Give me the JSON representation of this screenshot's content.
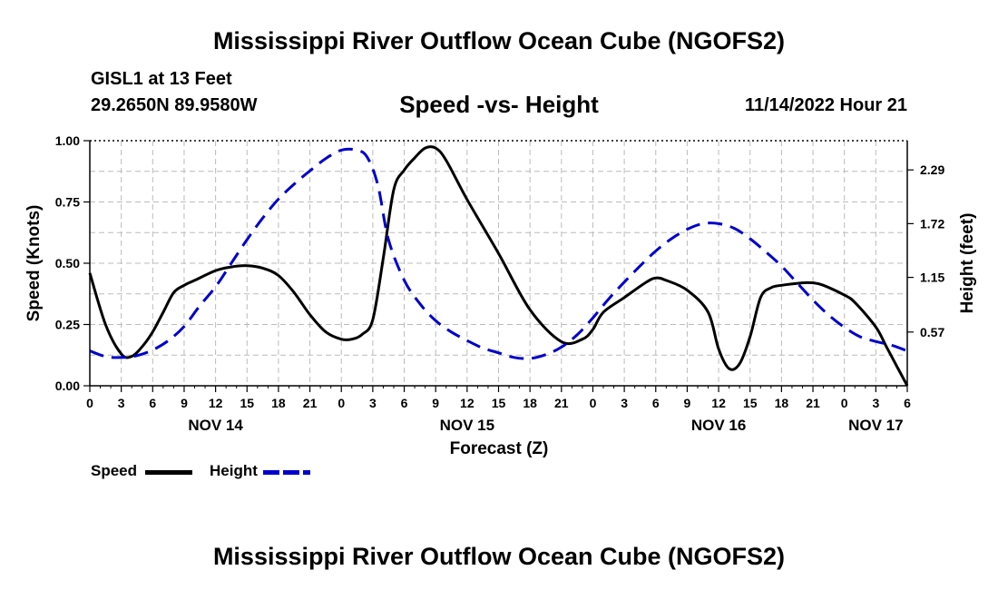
{
  "header": {
    "title": "Mississippi River Outflow Ocean Cube (NGOFS2)",
    "station": "GISL1 at 13 Feet",
    "coords": "29.2650N  89.9580W",
    "subtitle": "Speed -vs- Height",
    "timestamp": "11/14/2022 Hour 21"
  },
  "footer": {
    "title": "Mississippi River Outflow Ocean Cube (NGOFS2)"
  },
  "legend": {
    "speed_label": "Speed",
    "height_label": "Height"
  },
  "colors": {
    "speed": "#000000",
    "height": "#0000cc",
    "grid": "#bbbbbb"
  },
  "chart_data": {
    "type": "line",
    "xlabel": "Forecast (Z)",
    "ylabel": "Speed (Knots)",
    "y2label": "Height (feet)",
    "xlim": [
      0,
      78
    ],
    "ylim": [
      0,
      1.0
    ],
    "y2lim": [
      0.0,
      2.6
    ],
    "x_ticks": [
      0,
      3,
      6,
      9,
      12,
      15,
      18,
      21,
      24,
      27,
      30,
      33,
      36,
      39,
      42,
      45,
      48,
      51,
      54,
      57,
      60,
      63,
      66,
      69,
      72,
      75,
      78
    ],
    "x_tick_labels": [
      "0",
      "3",
      "6",
      "9",
      "12",
      "15",
      "18",
      "21",
      "0",
      "3",
      "6",
      "9",
      "12",
      "15",
      "18",
      "21",
      "0",
      "3",
      "6",
      "9",
      "12",
      "15",
      "18",
      "21",
      "0",
      "3",
      "6"
    ],
    "date_labels": [
      {
        "x": 12,
        "label": "NOV 14"
      },
      {
        "x": 36,
        "label": "NOV 15"
      },
      {
        "x": 60,
        "label": "NOV 16"
      },
      {
        "x": 75,
        "label": "NOV 17"
      }
    ],
    "y_ticks": [
      0,
      0.25,
      0.5,
      0.75,
      1.0
    ],
    "y_tick_labels": [
      "0.00",
      "0.25",
      "0.50",
      "0.75",
      "1.00"
    ],
    "y2_ticks": [
      0.57,
      1.15,
      1.72,
      2.29
    ],
    "y2_tick_labels": [
      "0.57",
      "1.15",
      "1.72",
      "2.29"
    ],
    "series": [
      {
        "name": "Speed",
        "axis": "left",
        "style": "solid",
        "x": [
          0,
          1.5,
          3,
          4,
          5,
          6,
          7,
          8,
          9,
          10,
          12,
          13.5,
          15,
          16.5,
          18,
          19.5,
          21,
          22.5,
          24,
          25,
          26,
          27,
          28,
          29,
          30,
          31,
          32,
          33,
          34,
          36,
          39,
          42,
          45,
          47,
          48,
          49,
          51,
          53,
          54,
          55,
          57,
          59,
          60,
          61,
          62,
          63,
          64,
          65,
          66,
          68,
          69,
          70,
          72,
          73,
          75,
          76,
          77,
          78
        ],
        "y": [
          0.46,
          0.25,
          0.13,
          0.12,
          0.16,
          0.22,
          0.3,
          0.38,
          0.41,
          0.43,
          0.47,
          0.485,
          0.49,
          0.48,
          0.45,
          0.38,
          0.29,
          0.22,
          0.19,
          0.19,
          0.21,
          0.27,
          0.52,
          0.8,
          0.88,
          0.93,
          0.97,
          0.97,
          0.92,
          0.76,
          0.54,
          0.31,
          0.18,
          0.19,
          0.23,
          0.3,
          0.36,
          0.42,
          0.44,
          0.43,
          0.39,
          0.3,
          0.15,
          0.07,
          0.09,
          0.2,
          0.36,
          0.4,
          0.41,
          0.42,
          0.42,
          0.41,
          0.37,
          0.34,
          0.24,
          0.16,
          0.08,
          0.0
        ],
        "values_note": "solid black line"
      },
      {
        "name": "Height",
        "axis": "right",
        "style": "dashed",
        "x": [
          0,
          1.5,
          3,
          4.5,
          6,
          7.5,
          9,
          10.5,
          12,
          13.5,
          15,
          16.5,
          18,
          19.5,
          21,
          22.5,
          24,
          25.5,
          26.5,
          27.5,
          28.5,
          30,
          31.5,
          33,
          34.5,
          36,
          37.5,
          39,
          40.5,
          42,
          43.5,
          45,
          46.5,
          48,
          49.5,
          51,
          52.5,
          54,
          55.5,
          57,
          58.5,
          60,
          61.5,
          63,
          64.5,
          66,
          67.5,
          69,
          70.5,
          72,
          73.5,
          75,
          76.5,
          78
        ],
        "y": [
          0.37,
          0.31,
          0.3,
          0.32,
          0.38,
          0.48,
          0.63,
          0.85,
          1.05,
          1.3,
          1.55,
          1.78,
          1.98,
          2.14,
          2.28,
          2.41,
          2.5,
          2.5,
          2.42,
          2.12,
          1.55,
          1.12,
          0.87,
          0.69,
          0.57,
          0.48,
          0.4,
          0.35,
          0.3,
          0.29,
          0.33,
          0.41,
          0.54,
          0.72,
          0.92,
          1.1,
          1.27,
          1.43,
          1.56,
          1.66,
          1.72,
          1.72,
          1.67,
          1.56,
          1.42,
          1.27,
          1.09,
          0.91,
          0.75,
          0.62,
          0.52,
          0.47,
          0.43,
          0.37
        ],
        "values_note": "dashed blue line, right axis"
      }
    ]
  }
}
